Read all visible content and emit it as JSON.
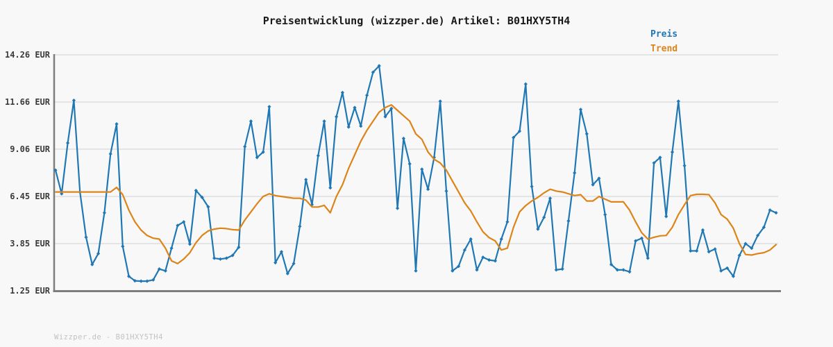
{
  "title": "Preisentwicklung (wizzper.de) Artikel: B01HXY5TH4",
  "watermark": "Wizzper.de - B01HXY5TH4",
  "colors": {
    "background": "#f8f8f8",
    "gridline": "#e4e4e4",
    "axis": "#7d7d7d",
    "preis_blue": "#1f77b4",
    "trend_orange": "#dd8418",
    "tick_text": "#3a3a3a",
    "watermark_gray": "#c2c2c2"
  },
  "chart_data": {
    "type": "line",
    "title": "Preisentwicklung (wizzper.de) Artikel: B01HXY5TH4",
    "ylabel": "EUR",
    "xlabel": "",
    "ylim": [
      1.25,
      14.26
    ],
    "grid": "horizontal-only",
    "legend_position": "top-right",
    "y_ticks": [
      {
        "value": 14.26,
        "label": "14.26 EUR"
      },
      {
        "value": 11.66,
        "label": "11.66 EUR"
      },
      {
        "value": 9.06,
        "label": "9.06 EUR"
      },
      {
        "value": 6.45,
        "label": "6.45 EUR"
      },
      {
        "value": 3.85,
        "label": "3.85 EUR"
      },
      {
        "value": 1.25,
        "label": "1.25 EUR"
      }
    ],
    "x_tick_labels": [],
    "series": [
      {
        "name": "Preis",
        "color": "#1f77b4",
        "markers": true,
        "values": [
          7.9,
          6.6,
          9.4,
          11.75,
          6.7,
          4.2,
          2.7,
          3.3,
          5.55,
          8.8,
          10.45,
          3.7,
          2.05,
          1.8,
          1.78,
          1.78,
          1.85,
          2.45,
          2.35,
          3.6,
          4.85,
          5.05,
          3.82,
          6.78,
          6.4,
          5.88,
          3.05,
          3.0,
          3.05,
          3.2,
          3.65,
          9.2,
          10.6,
          8.6,
          8.9,
          11.4,
          2.8,
          3.4,
          2.2,
          2.75,
          4.8,
          7.38,
          6.0,
          8.7,
          10.6,
          6.93,
          10.85,
          12.18,
          10.28,
          11.35,
          10.33,
          12.03,
          13.3,
          13.65,
          10.85,
          11.3,
          5.8,
          9.65,
          8.25,
          2.35,
          7.95,
          6.85,
          8.6,
          11.7,
          6.75,
          2.35,
          2.6,
          3.5,
          4.1,
          2.4,
          3.1,
          2.95,
          2.9,
          4.1,
          5.05,
          9.7,
          10.05,
          12.65,
          7.0,
          4.65,
          5.3,
          6.35,
          2.4,
          2.45,
          5.1,
          7.75,
          11.25,
          9.9,
          7.1,
          7.45,
          5.45,
          2.7,
          2.4,
          2.4,
          2.3,
          4.0,
          4.15,
          3.05,
          8.3,
          8.6,
          5.35,
          8.9,
          11.7,
          8.15,
          3.45,
          3.45,
          4.6,
          3.4,
          3.55,
          2.35,
          2.5,
          2.05,
          3.2,
          3.85,
          3.6,
          4.3,
          4.75,
          5.7,
          5.55
        ]
      },
      {
        "name": "Trend",
        "color": "#dd8418",
        "markers": false,
        "values": [
          6.7,
          6.7,
          6.7,
          6.7,
          6.7,
          6.7,
          6.7,
          6.7,
          6.7,
          6.7,
          6.95,
          6.55,
          5.7,
          5.05,
          4.6,
          4.3,
          4.15,
          4.1,
          3.6,
          2.9,
          2.75,
          3.0,
          3.35,
          3.9,
          4.3,
          4.55,
          4.65,
          4.7,
          4.68,
          4.62,
          4.6,
          5.15,
          5.6,
          6.05,
          6.45,
          6.6,
          6.5,
          6.45,
          6.4,
          6.35,
          6.35,
          6.25,
          5.87,
          5.87,
          5.96,
          5.55,
          6.45,
          7.1,
          8.0,
          8.75,
          9.5,
          10.1,
          10.6,
          11.1,
          11.35,
          11.5,
          11.2,
          10.9,
          10.6,
          9.9,
          9.6,
          8.9,
          8.5,
          8.3,
          7.9,
          7.3,
          6.7,
          6.1,
          5.65,
          5.05,
          4.5,
          4.18,
          4.0,
          3.5,
          3.6,
          4.75,
          5.6,
          5.95,
          6.2,
          6.4,
          6.65,
          6.85,
          6.75,
          6.7,
          6.6,
          6.5,
          6.55,
          6.2,
          6.2,
          6.45,
          6.3,
          6.15,
          6.15,
          6.15,
          5.7,
          5.05,
          4.45,
          4.1,
          4.2,
          4.28,
          4.3,
          4.75,
          5.45,
          6.0,
          6.5,
          6.57,
          6.57,
          6.55,
          6.1,
          5.45,
          5.2,
          4.7,
          3.85,
          3.25,
          3.22,
          3.3,
          3.35,
          3.5,
          3.8
        ]
      }
    ]
  }
}
